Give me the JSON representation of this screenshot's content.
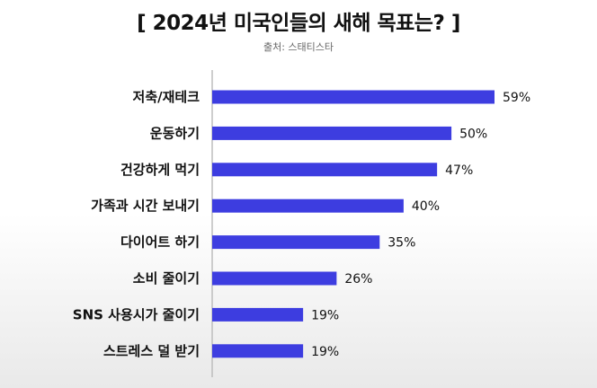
{
  "chart_data": {
    "type": "bar",
    "orientation": "horizontal",
    "title": "[ 2024년 미국인들의 새해 목표는? ]",
    "subtitle": "출처: 스태티스타",
    "categories": [
      "저축/재테크",
      "운동하기",
      "건강하게 먹기",
      "가족과 시간 보내기",
      "다이어트 하기",
      "소비 줄이기",
      "SNS 사용시가 줄이기",
      "스트레스 덜 받기"
    ],
    "values": [
      59,
      50,
      47,
      40,
      35,
      26,
      19,
      19
    ],
    "value_labels": [
      "59%",
      "50%",
      "47%",
      "40%",
      "35%",
      "26%",
      "19%",
      "19%"
    ],
    "xlim": [
      0,
      59
    ],
    "grid": false,
    "legend": "none",
    "bar_color": "#3d3de0"
  }
}
